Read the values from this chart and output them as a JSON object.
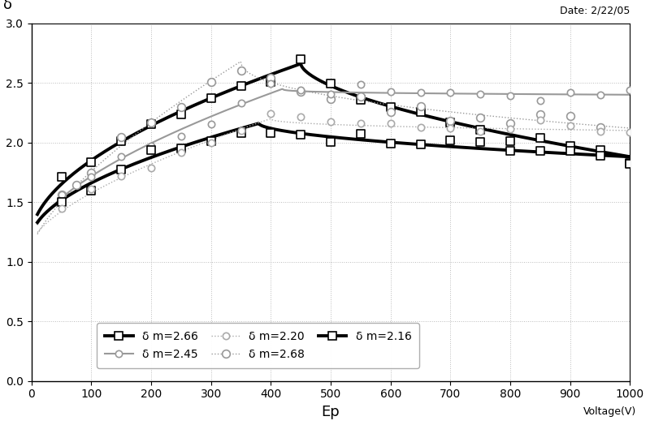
{
  "title_annotation": "Date: 2/22/05",
  "xlabel": "Ep",
  "ylabel": "δ",
  "voltage_label": "Voltage(V)",
  "xlim": [
    0,
    1000
  ],
  "ylim": [
    0.0,
    3.0
  ],
  "xticks": [
    0,
    100,
    200,
    300,
    400,
    500,
    600,
    700,
    800,
    900,
    1000
  ],
  "yticks": [
    0.0,
    0.5,
    1.0,
    1.5,
    2.0,
    2.5,
    3.0
  ],
  "background_color": "#ffffff",
  "grid_color": "#aaaaaa",
  "curves": [
    {
      "label": "δ m=2.66",
      "peak": 2.66,
      "peak_x": 450,
      "color": "#000000",
      "linewidth": 2.8,
      "linestyle": "-",
      "marker": "s",
      "marker_facecolor": "white",
      "marker_edgecolor": "black",
      "marker_size": 7,
      "start_y": 1.22,
      "end_y": 1.88,
      "rise_power": 0.55,
      "fall_power": 0.6
    },
    {
      "label": "δ m=2.68",
      "peak": 2.68,
      "peak_x": 350,
      "color": "#999999",
      "linewidth": 1.0,
      "linestyle": "dotted",
      "marker": "o",
      "marker_facecolor": "white",
      "marker_edgecolor": "#999999",
      "marker_size": 7,
      "start_y": 1.1,
      "end_y": 2.12,
      "rise_power": 0.7,
      "fall_power": 0.45
    },
    {
      "label": "δ m=2.45",
      "peak": 2.45,
      "peak_x": 420,
      "color": "#999999",
      "linewidth": 1.5,
      "linestyle": "-",
      "marker": "o",
      "marker_facecolor": "white",
      "marker_edgecolor": "#999999",
      "marker_size": 6,
      "start_y": 1.18,
      "end_y": 2.4,
      "rise_power": 0.6,
      "fall_power": 0.3
    },
    {
      "label": "δ m=2.16",
      "peak": 2.16,
      "peak_x": 380,
      "color": "#000000",
      "linewidth": 2.8,
      "linestyle": "-",
      "marker": "s",
      "marker_facecolor": "white",
      "marker_edgecolor": "black",
      "marker_size": 7,
      "start_y": 1.2,
      "end_y": 1.88,
      "rise_power": 0.55,
      "fall_power": 0.55
    },
    {
      "label": "δ m=2.20",
      "peak": 2.2,
      "peak_x": 400,
      "color": "#aaaaaa",
      "linewidth": 1.0,
      "linestyle": "dotted",
      "marker": "o",
      "marker_facecolor": "white",
      "marker_edgecolor": "#aaaaaa",
      "marker_size": 6,
      "start_y": 1.15,
      "end_y": 2.1,
      "rise_power": 0.65,
      "fall_power": 0.4
    }
  ],
  "legend_entries": [
    {
      "label": "δ m=2.66",
      "color": "#000000",
      "linewidth": 2.8,
      "linestyle": "-",
      "marker": "s",
      "marker_facecolor": "white",
      "marker_edgecolor": "black",
      "marker_size": 7
    },
    {
      "label": "δ m=2.45",
      "color": "#999999",
      "linewidth": 1.5,
      "linestyle": "-",
      "marker": "o",
      "marker_facecolor": "white",
      "marker_edgecolor": "#999999",
      "marker_size": 6
    },
    {
      "label": "δ m=2.20",
      "color": "#aaaaaa",
      "linewidth": 1.0,
      "linestyle": "dotted",
      "marker": "o",
      "marker_facecolor": "white",
      "marker_edgecolor": "#aaaaaa",
      "marker_size": 6
    },
    {
      "label": "δ m=2.68",
      "color": "#999999",
      "linewidth": 1.0,
      "linestyle": "dotted",
      "marker": "o",
      "marker_facecolor": "white",
      "marker_edgecolor": "#999999",
      "marker_size": 7
    },
    {
      "label": "δ m=2.16",
      "color": "#000000",
      "linewidth": 2.8,
      "linestyle": "-",
      "marker": "s",
      "marker_facecolor": "white",
      "marker_edgecolor": "black",
      "marker_size": 7
    }
  ]
}
